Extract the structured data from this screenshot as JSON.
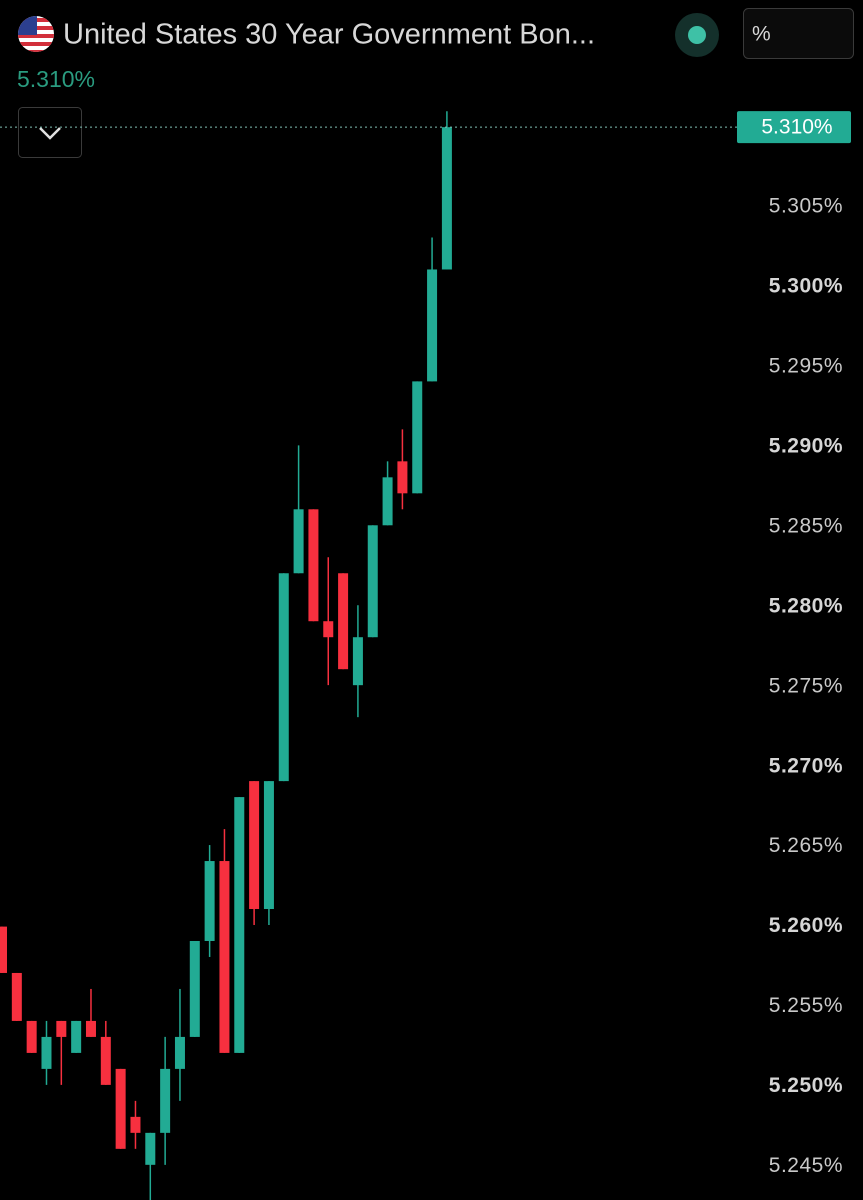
{
  "header": {
    "title": "United States 30 Year Government Bon...",
    "price": "5.310%",
    "unit_button": "%"
  },
  "chart_data": {
    "type": "candlestick",
    "open": [
      5.26,
      5.2571,
      5.2541,
      5.2511,
      5.2541,
      5.2521,
      5.2541,
      5.2531,
      5.2511,
      5.2481,
      5.2451,
      5.2471,
      5.2511,
      5.2531,
      5.2591,
      5.2641,
      5.2521,
      5.2691,
      5.2611,
      5.2691,
      5.2821,
      5.2861,
      5.2791,
      5.2821,
      5.2751,
      5.2781,
      5.2851,
      5.2891,
      5.2871,
      5.2941,
      5.3011
    ],
    "high": [
      5.26,
      5.2571,
      5.2541,
      5.2541,
      5.2541,
      5.2541,
      5.2561,
      5.2541,
      5.2511,
      5.2491,
      5.2471,
      5.2531,
      5.2561,
      5.2591,
      5.2651,
      5.2661,
      5.2681,
      5.2691,
      5.2691,
      5.2821,
      5.2901,
      5.2861,
      5.2831,
      5.2821,
      5.2801,
      5.2851,
      5.2891,
      5.2911,
      5.2941,
      5.3031,
      5.311
    ],
    "low": [
      5.2571,
      5.2541,
      5.2521,
      5.2501,
      5.2501,
      5.2521,
      5.2531,
      5.2501,
      5.2461,
      5.2461,
      5.2429,
      5.2451,
      5.2491,
      5.2531,
      5.2581,
      5.2521,
      5.2521,
      5.2601,
      5.2601,
      5.2691,
      5.2821,
      5.2791,
      5.2751,
      5.2761,
      5.2731,
      5.2781,
      5.2851,
      5.2861,
      5.2871,
      5.2941,
      5.3011
    ],
    "close": [
      5.2571,
      5.2541,
      5.2521,
      5.2531,
      5.2531,
      5.2541,
      5.2531,
      5.2501,
      5.2461,
      5.2471,
      5.2471,
      5.2511,
      5.2531,
      5.2591,
      5.2641,
      5.2521,
      5.2681,
      5.2611,
      5.2691,
      5.2821,
      5.2861,
      5.2791,
      5.2781,
      5.2761,
      5.2781,
      5.2851,
      5.2881,
      5.2871,
      5.2941,
      5.3011,
      5.31
    ],
    "up_color": "#22ab94",
    "down_color": "#f7303f",
    "ylim": [
      5.2429,
      5.3117
    ],
    "yticks": [
      {
        "value": 5.305,
        "label": "5.305%"
      },
      {
        "value": 5.3,
        "label": "5.300%"
      },
      {
        "value": 5.295,
        "label": "5.295%"
      },
      {
        "value": 5.29,
        "label": "5.290%"
      },
      {
        "value": 5.285,
        "label": "5.285%"
      },
      {
        "value": 5.28,
        "label": "5.280%"
      },
      {
        "value": 5.275,
        "label": "5.275%"
      },
      {
        "value": 5.27,
        "label": "5.270%"
      },
      {
        "value": 5.265,
        "label": "5.265%"
      },
      {
        "value": 5.26,
        "label": "5.260%"
      },
      {
        "value": 5.255,
        "label": "5.255%"
      },
      {
        "value": 5.25,
        "label": "5.250%"
      },
      {
        "value": 5.245,
        "label": "5.245%"
      }
    ],
    "last_price": {
      "value": 5.31,
      "label": "5.310%"
    }
  }
}
